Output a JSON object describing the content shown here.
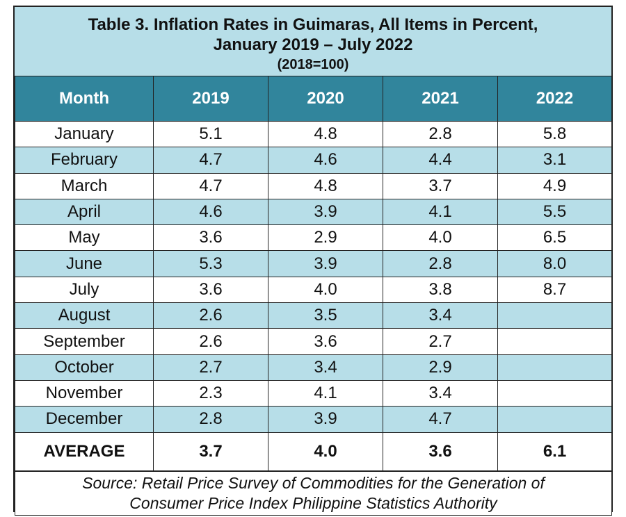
{
  "title": {
    "line1": "Table 3. Inflation Rates in Guimaras, All Items in Percent,",
    "line2": "January 2019 – July 2022",
    "line3": "(2018=100)"
  },
  "headers": [
    "Month",
    "2019",
    "2020",
    "2021",
    "2022"
  ],
  "rows": [
    {
      "month": "January",
      "values": [
        "5.1",
        "4.8",
        "2.8",
        "5.8"
      ]
    },
    {
      "month": "February",
      "values": [
        "4.7",
        "4.6",
        "4.4",
        "3.1"
      ]
    },
    {
      "month": "March",
      "values": [
        "4.7",
        "4.8",
        "3.7",
        "4.9"
      ]
    },
    {
      "month": "April",
      "values": [
        "4.6",
        "3.9",
        "4.1",
        "5.5"
      ]
    },
    {
      "month": "May",
      "values": [
        "3.6",
        "2.9",
        "4.0",
        "6.5"
      ]
    },
    {
      "month": "June",
      "values": [
        "5.3",
        "3.9",
        "2.8",
        "8.0"
      ]
    },
    {
      "month": "July",
      "values": [
        "3.6",
        "4.0",
        "3.8",
        "8.7"
      ]
    },
    {
      "month": "August",
      "values": [
        "2.6",
        "3.5",
        "3.4",
        ""
      ]
    },
    {
      "month": "September",
      "values": [
        "2.6",
        "3.6",
        "2.7",
        ""
      ]
    },
    {
      "month": "October",
      "values": [
        "2.7",
        "3.4",
        "2.9",
        ""
      ]
    },
    {
      "month": "November",
      "values": [
        "2.3",
        "4.1",
        "3.4",
        ""
      ]
    },
    {
      "month": "December",
      "values": [
        "2.8",
        "3.9",
        "4.7",
        ""
      ]
    }
  ],
  "average": {
    "label": "AVERAGE",
    "values": [
      "3.7",
      "4.0",
      "3.6",
      "6.1"
    ]
  },
  "source": {
    "line1": "Source: Retail Price Survey of Commodities for the Generation of",
    "line2": "Consumer Price Index Philippine Statistics Authority"
  },
  "colors": {
    "header_bg": "#31859c",
    "light_band": "#b7dee8"
  }
}
